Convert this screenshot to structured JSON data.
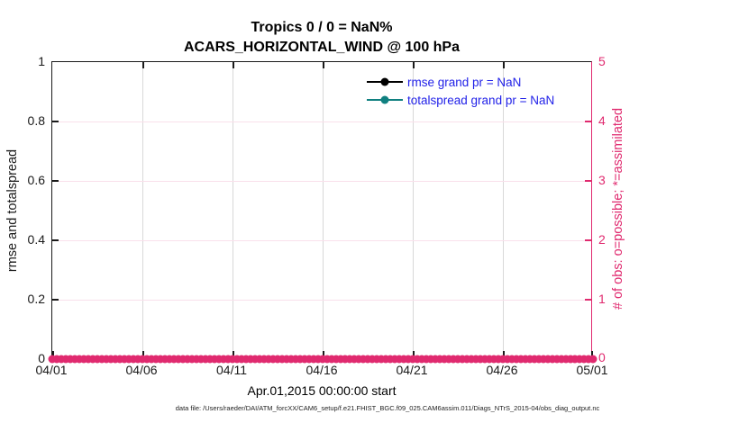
{
  "title": {
    "line1": "Tropics 0 / 0 = NaN%",
    "line2": "ACARS_HORIZONTAL_WIND @ 100 hPa"
  },
  "axes": {
    "left": {
      "label": "rmse and totalspread",
      "ticks": [
        "1",
        "0.8",
        "0.6",
        "0.4",
        "0.2",
        "0"
      ],
      "range": [
        0,
        1
      ]
    },
    "right": {
      "label": "# of obs: o=possible; *=assimilated",
      "ticks": [
        "5",
        "4",
        "3",
        "2",
        "1",
        "0"
      ],
      "range": [
        0,
        5
      ]
    },
    "x": {
      "label": "Apr.01,2015 00:00:00 start",
      "ticks": [
        "04/01",
        "04/06",
        "04/11",
        "04/16",
        "04/21",
        "04/26",
        "05/01"
      ]
    }
  },
  "legend": [
    {
      "label": "rmse grand pr = NaN"
    },
    {
      "label": "totalspread grand pr = NaN"
    }
  ],
  "footer": "data file: /Users/raeder/DAI/ATM_forcXX/CAM6_setup/f.e21.FHIST_BGC.f09_025.CAM6assim.011/Diags_NTrS_2015-04/obs_diag_output.nc",
  "colors": {
    "obs_pink": "#E02A6F",
    "grid_pink": "#F9E0EB",
    "grid_gray": "#D8D8D8",
    "axis_dark": "#1A1A1A",
    "totalspread_teal": "#108080",
    "rmse_black": "#000000",
    "legend_blue": "#1F1FE8"
  },
  "chart_data": {
    "type": "line",
    "title": "Tropics 0 / 0 = NaN%",
    "subtitle": "ACARS_HORIZONTAL_WIND @ 100 hPa",
    "xlabel": "Apr.01,2015 00:00:00 start",
    "ylabel_left": "rmse and totalspread",
    "ylabel_right": "# of obs: o=possible; *=assimilated",
    "x_tick_labels": [
      "04/01",
      "04/06",
      "04/11",
      "04/16",
      "04/21",
      "04/26",
      "05/01"
    ],
    "ylim_left": [
      0,
      1
    ],
    "ylim_right": [
      0,
      5
    ],
    "grid": true,
    "legend_position": "inside-top-right",
    "series": [
      {
        "name": "rmse grand pr",
        "value": "NaN",
        "points_plotted": 0,
        "color": "#000000",
        "marker": "filled-circle",
        "axis": "left"
      },
      {
        "name": "totalspread grand pr",
        "value": "NaN",
        "points_plotted": 0,
        "color": "#108080",
        "marker": "filled-circle",
        "axis": "left"
      },
      {
        "name": "# of obs possible (o)",
        "axis": "right",
        "x_start": "04/01",
        "x_end": "05/01",
        "interval_hours": 6,
        "n_points": 121,
        "constant_value": 0,
        "color": "#E02A6F",
        "marker": "o"
      },
      {
        "name": "# of obs assimilated (*)",
        "axis": "right",
        "x_start": "04/01",
        "x_end": "05/01",
        "interval_hours": 6,
        "n_points": 121,
        "constant_value": 0,
        "color": "#E02A6F",
        "marker": "*"
      }
    ]
  }
}
